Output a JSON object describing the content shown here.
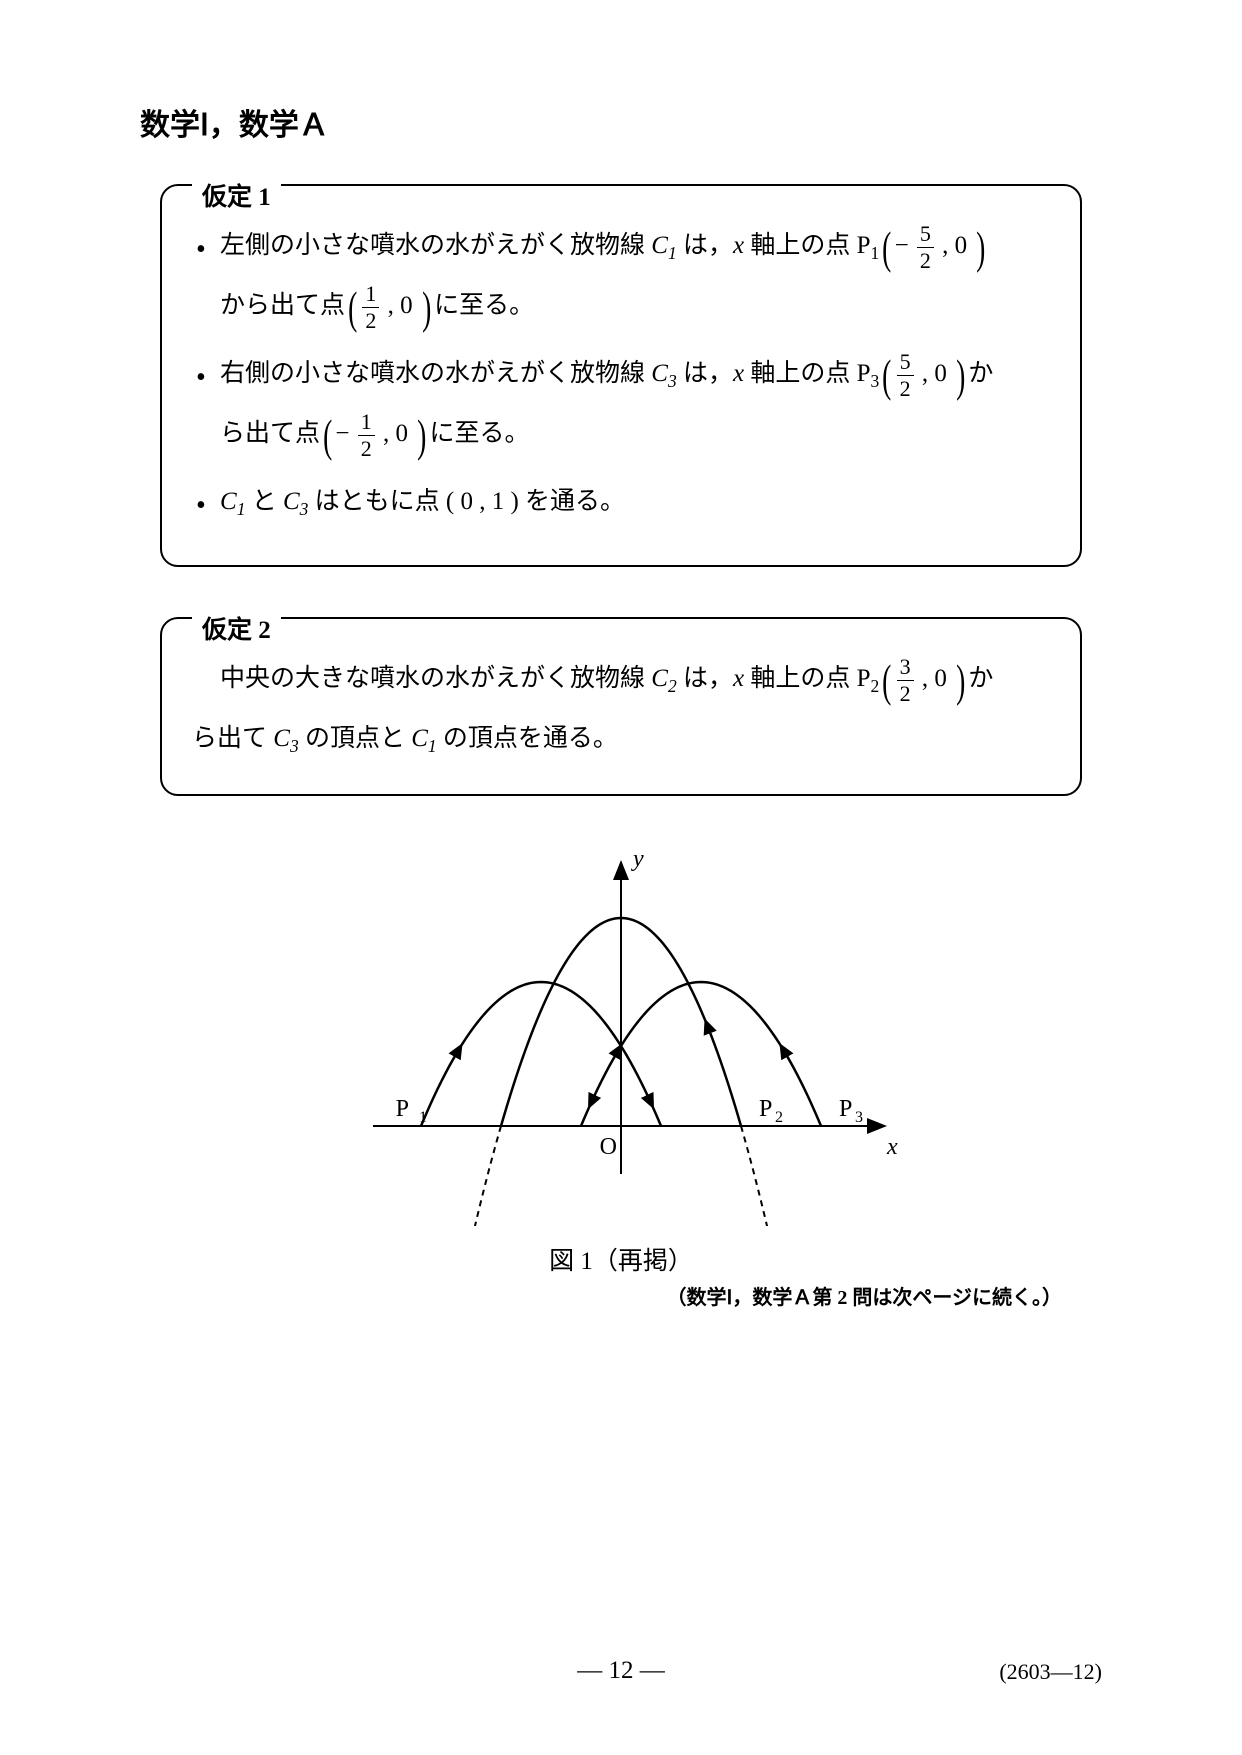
{
  "header": "数学Ⅰ，数学Ａ",
  "box1": {
    "title": "仮定 1",
    "bullet1_pre": "左側の小さな噴水の水がえがく放物線 ",
    "bullet1_c": "C",
    "bullet1_csub": "1",
    "bullet1_mid1": " は，",
    "bullet1_xaxis": "x 軸上の点 P",
    "bullet1_psub": "1",
    "bullet1_frac1_num": "5",
    "bullet1_frac1_den": "2",
    "bullet1_frac2_num": "1",
    "bullet1_frac2_den": "2",
    "bullet1_line2_pre": "から出て点",
    "bullet1_line2_post": "に至る。",
    "bullet2_pre": "右側の小さな噴水の水がえがく放物線 ",
    "bullet2_c": "C",
    "bullet2_csub": "3",
    "bullet2_mid1": " は，",
    "bullet2_xaxis": "x 軸上の点 P",
    "bullet2_psub": "3",
    "bullet2_frac1_num": "5",
    "bullet2_frac1_den": "2",
    "bullet2_post1": "か",
    "bullet2_line2_pre": "ら出て点",
    "bullet2_frac2_num": "1",
    "bullet2_frac2_den": "2",
    "bullet2_line2_post": "に至る。",
    "bullet3_c1": "C",
    "bullet3_c1sub": "1",
    "bullet3_and": " と ",
    "bullet3_c3": "C",
    "bullet3_c3sub": "3",
    "bullet3_rest": " はともに点 ( 0 , 1 ) を通る。"
  },
  "box2": {
    "title": "仮定 2",
    "line1_pre": "中央の大きな噴水の水がえがく放物線 ",
    "line1_c": "C",
    "line1_csub": "2",
    "line1_mid": " は，",
    "line1_xaxis": "x 軸上の点 P",
    "line1_psub": "2",
    "line1_frac_num": "3",
    "line1_frac_den": "2",
    "line1_post": "か",
    "line2_pre": "ら出て ",
    "line2_c3": "C",
    "line2_c3sub": "3",
    "line2_mid1": " の頂点と ",
    "line2_c1": "C",
    "line2_c1sub": "1",
    "line2_post": " の頂点を通る。"
  },
  "diagram": {
    "ylabel": "y",
    "xlabel": "x",
    "origin": "O",
    "p1": "P₁",
    "p2": "P₂",
    "p3": "P₃",
    "caption": "図 1（再掲）",
    "axis_color": "#000000",
    "curve_color": "#000000",
    "stroke_width": 2.5,
    "p1_x": -2.5,
    "p2_x": 1.5,
    "p3_x": 2.5,
    "c1_x1": -2.5,
    "c1_x2": 0.5,
    "c1_vertex_x": -1,
    "c1_vertex_y": 1.8,
    "c3_x1": -0.5,
    "c3_x2": 2.5,
    "c3_vertex_x": 1,
    "c3_vertex_y": 1.8,
    "c2_x1": -1.5,
    "c2_x2": 1.5,
    "c2_vertex_x": 0,
    "c2_vertex_y": 2.6
  },
  "continue": "（数学Ⅰ，数学Ａ第 2 問は次ページに続く。）",
  "page_number": "― 12 ―",
  "page_code": "(2603―12)"
}
